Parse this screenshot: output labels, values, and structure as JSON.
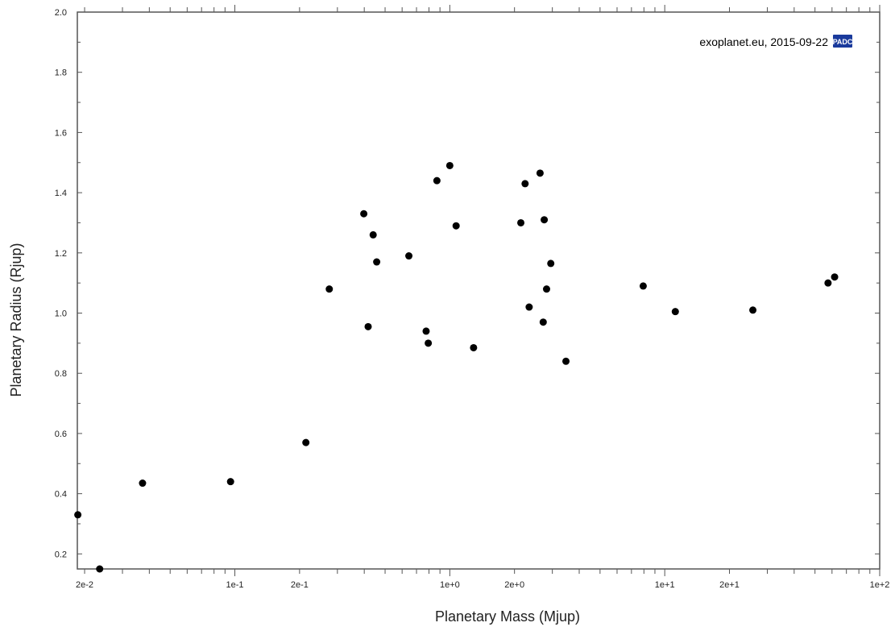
{
  "chart_data": {
    "type": "scatter",
    "title": "",
    "xlabel": "Planetary Mass (Mjup)",
    "ylabel": "Planetary Radius (Rjup)",
    "x_scale": "log",
    "xlim": [
      0.0185,
      100
    ],
    "ylim": [
      0.15,
      2.0
    ],
    "grid": false,
    "x_tick_labels": [
      {
        "value": 0.02,
        "label": "2e-2"
      },
      {
        "value": 0.1,
        "label": "1e-1"
      },
      {
        "value": 0.2,
        "label": "2e-1"
      },
      {
        "value": 1,
        "label": "1e+0"
      },
      {
        "value": 2,
        "label": "2e+0"
      },
      {
        "value": 10,
        "label": "1e+1"
      },
      {
        "value": 20,
        "label": "2e+1"
      },
      {
        "value": 100,
        "label": "1e+2"
      }
    ],
    "y_ticks": [
      0.2,
      0.4,
      0.6,
      0.8,
      1.0,
      1.2,
      1.4,
      1.6,
      1.8,
      2.0
    ],
    "y_tick_labels": [
      "0.2",
      "0.4",
      "0.6",
      "0.8",
      "1.0",
      "1.2",
      "1.4",
      "1.6",
      "1.8",
      "2.0"
    ],
    "marker_color": "#000000",
    "points": [
      {
        "x": 0.0186,
        "y": 0.33
      },
      {
        "x": 0.0235,
        "y": 0.15
      },
      {
        "x": 0.0372,
        "y": 0.435
      },
      {
        "x": 0.0955,
        "y": 0.44
      },
      {
        "x": 0.214,
        "y": 0.57
      },
      {
        "x": 0.275,
        "y": 1.08
      },
      {
        "x": 0.398,
        "y": 1.33
      },
      {
        "x": 0.417,
        "y": 0.955
      },
      {
        "x": 0.44,
        "y": 1.26
      },
      {
        "x": 0.457,
        "y": 1.17
      },
      {
        "x": 0.645,
        "y": 1.19
      },
      {
        "x": 0.776,
        "y": 0.94
      },
      {
        "x": 0.794,
        "y": 0.9
      },
      {
        "x": 0.871,
        "y": 1.44
      },
      {
        "x": 1.0,
        "y": 1.49
      },
      {
        "x": 1.07,
        "y": 1.29
      },
      {
        "x": 1.29,
        "y": 0.885
      },
      {
        "x": 2.14,
        "y": 1.3
      },
      {
        "x": 2.24,
        "y": 1.43
      },
      {
        "x": 2.34,
        "y": 1.02
      },
      {
        "x": 2.63,
        "y": 1.465
      },
      {
        "x": 2.75,
        "y": 1.31
      },
      {
        "x": 2.72,
        "y": 0.97
      },
      {
        "x": 2.82,
        "y": 1.08
      },
      {
        "x": 2.95,
        "y": 1.165
      },
      {
        "x": 3.47,
        "y": 0.84
      },
      {
        "x": 7.94,
        "y": 1.09
      },
      {
        "x": 11.2,
        "y": 1.005
      },
      {
        "x": 25.7,
        "y": 1.01
      },
      {
        "x": 57.5,
        "y": 1.1
      },
      {
        "x": 61.7,
        "y": 1.12
      }
    ],
    "annotation": "exoplanet.eu, 2015-09-22",
    "legend": "none"
  },
  "logo": {
    "text": "PADC",
    "bg_color": "#1a3a9c",
    "icon": "padc-logo-icon"
  }
}
